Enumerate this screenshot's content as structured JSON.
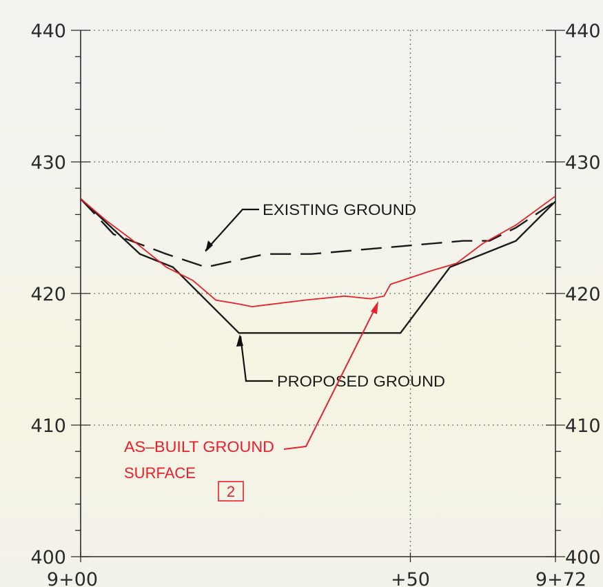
{
  "chart_data": {
    "type": "line",
    "title": "",
    "xlabel": "",
    "ylabel": "",
    "xlim": [
      0,
      72
    ],
    "ylim": [
      400,
      440
    ],
    "grid": true,
    "y_ticks": [
      {
        "value": 440,
        "label": "440"
      },
      {
        "value": 430,
        "label": "430"
      },
      {
        "value": 420,
        "label": "420"
      },
      {
        "value": 410,
        "label": "410"
      },
      {
        "value": 400,
        "label": "400"
      }
    ],
    "x_ticks": [
      {
        "value": 0,
        "label": "9+00"
      },
      {
        "value": 50,
        "label": "+50"
      },
      {
        "value": 72,
        "label": "9+72"
      }
    ],
    "series": [
      {
        "name": "EXISTING GROUND",
        "color": "#1a1a1a",
        "style": "dashed",
        "x": [
          0,
          5,
          13,
          19,
          28,
          35,
          58,
          62,
          66,
          72
        ],
        "y": [
          427.2,
          424.5,
          423,
          422,
          423,
          423,
          424,
          424,
          425,
          427
        ]
      },
      {
        "name": "PROPOSED GROUND",
        "color": "#1a1a1a",
        "style": "solid",
        "x": [
          0,
          9,
          14,
          24,
          32,
          48.5,
          56,
          61,
          66,
          72
        ],
        "y": [
          427.2,
          423,
          422,
          417,
          417,
          417,
          422,
          423,
          424,
          427
        ]
      },
      {
        "name": "AS-BUILT GROUND SURFACE",
        "color": "#e8202c",
        "style": "solid",
        "x": [
          0,
          4,
          8,
          13,
          17,
          20.5,
          24,
          26,
          34,
          40,
          44,
          46,
          47,
          53,
          57,
          61,
          66,
          72
        ],
        "y": [
          427.2,
          425.5,
          424,
          422,
          421,
          419.5,
          419.2,
          419,
          419.5,
          419.8,
          419.6,
          419.8,
          420.7,
          421.7,
          422.3,
          423.8,
          425.2,
          427.4
        ]
      }
    ],
    "annotations": {
      "existing_label": "EXISTING GROUND",
      "proposed_label": "PROPOSED GROUND",
      "asbuilt_label_line1": "AS–BUILT GROUND",
      "asbuilt_label_line2": "SURFACE",
      "note_number": "2"
    }
  }
}
